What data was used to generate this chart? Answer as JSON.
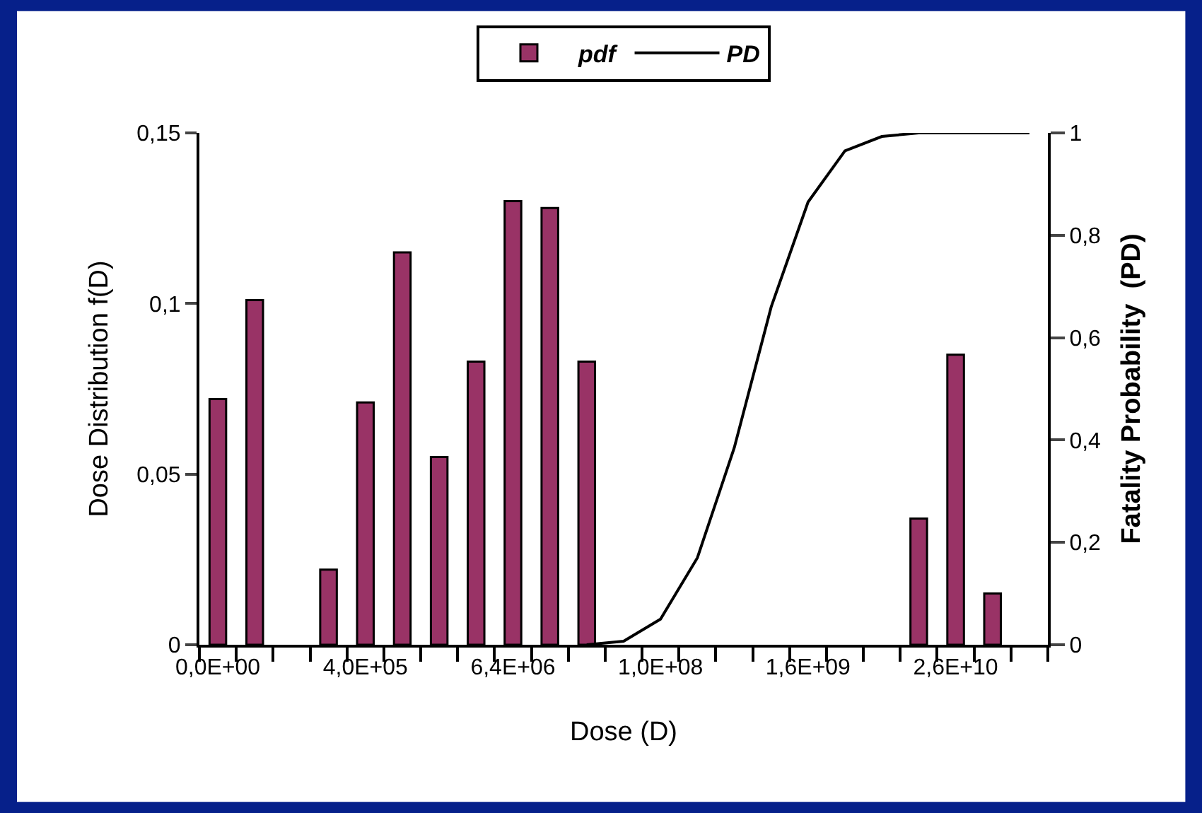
{
  "chart_data": {
    "type": "bar",
    "xlabel": "Dose (D)",
    "ylabel": "Dose Distribution f(D)",
    "y2label": "Fatality Probability  (PD)",
    "categories": [
      "0,0E+00",
      null,
      null,
      null,
      "4,0E+05",
      null,
      null,
      null,
      "6,4E+06",
      null,
      null,
      null,
      "1,0E+08",
      null,
      null,
      null,
      "1,6E+09",
      null,
      null,
      null,
      "2,6E+10",
      null,
      null
    ],
    "series": [
      {
        "name": "pdf",
        "color": "#993366",
        "values": [
          0.072,
          0.101,
          null,
          0.022,
          0.071,
          0.115,
          0.055,
          0.083,
          0.13,
          0.128,
          0.083,
          null,
          null,
          null,
          null,
          null,
          null,
          null,
          null,
          0.037,
          0.085,
          0.015,
          null
        ]
      },
      {
        "name": "PD",
        "type": "line",
        "axis": "y2",
        "color": "#000000",
        "values": [
          null,
          null,
          null,
          null,
          null,
          null,
          null,
          null,
          null,
          null,
          0,
          0.007,
          0.05,
          0.17,
          0.385,
          0.66,
          0.865,
          0.965,
          0.993,
          1,
          1,
          1,
          1
        ]
      }
    ],
    "ylim": [
      0,
      0.15
    ],
    "yticks": [
      0,
      {
        "value": 0.05,
        "label": "0,05"
      },
      {
        "value": 0.1,
        "label": "0,1"
      },
      {
        "value": 0.15,
        "label": "0,15"
      }
    ],
    "y2lim": [
      0,
      1
    ],
    "y2ticks": [
      0,
      {
        "value": 0.2,
        "label": "0,2"
      },
      {
        "value": 0.4,
        "label": "0,4"
      },
      {
        "value": 0.6,
        "label": "0,6"
      },
      {
        "value": 0.8,
        "label": "0,8"
      },
      1
    ],
    "legend": "top",
    "marker": "none",
    "line_style": "solid"
  }
}
